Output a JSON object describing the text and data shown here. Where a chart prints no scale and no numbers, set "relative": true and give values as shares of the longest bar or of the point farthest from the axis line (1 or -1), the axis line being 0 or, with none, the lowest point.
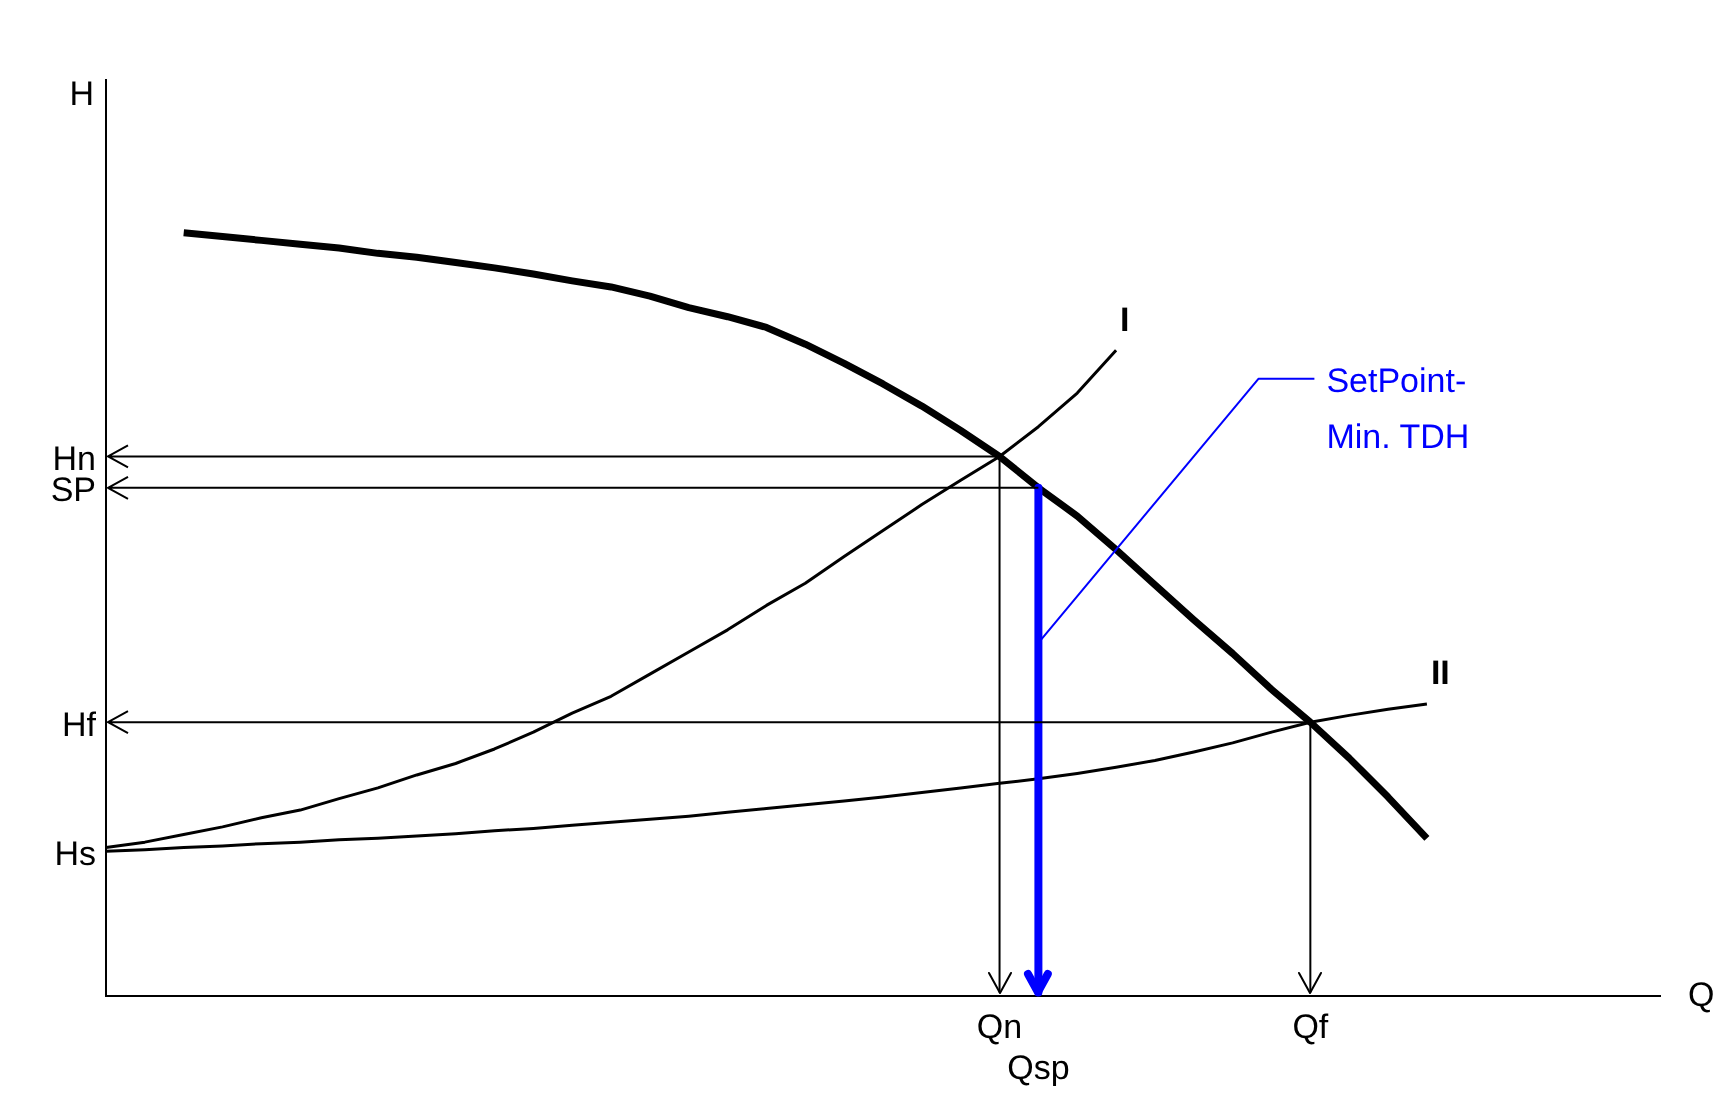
{
  "chart_data": {
    "type": "line",
    "relative": true,
    "xlabel": "Q",
    "ylabel": "H",
    "tick_labels": "x",
    "grid": false,
    "legend": false,
    "marker": "none",
    "categories": [
      null,
      null,
      null,
      null,
      null,
      null,
      null,
      null,
      null,
      null,
      null,
      null,
      null,
      null,
      null,
      null,
      null,
      null,
      null,
      null,
      null,
      null,
      null,
      "Qn",
      "Qsp",
      null,
      null,
      null,
      null,
      null,
      null,
      "Qf",
      null,
      null,
      null,
      null,
      null,
      null,
      null,
      null,
      null
    ],
    "series": [
      {
        "color": "#000000",
        "values": [
          null,
          null,
          1.0,
          0.995,
          0.99,
          0.985,
          0.98,
          0.973,
          0.968,
          0.961,
          0.954,
          0.946,
          0.937,
          0.929,
          0.917,
          0.902,
          0.89,
          0.876,
          0.854,
          0.829,
          0.802,
          0.773,
          0.741,
          0.707,
          0.666,
          0.629,
          0.585,
          0.539,
          0.493,
          0.449,
          0.402,
          0.359,
          0.312,
          0.261,
          0.207,
          null,
          null,
          null,
          null,
          null,
          null
        ]
      },
      {
        "name": "I",
        "color": "#000000",
        "values": [
          0.195,
          0.202,
          0.212,
          0.222,
          0.234,
          0.244,
          0.259,
          0.273,
          0.29,
          0.305,
          0.324,
          0.346,
          0.371,
          0.393,
          0.422,
          0.451,
          0.48,
          0.512,
          0.541,
          0.576,
          0.61,
          0.644,
          0.676,
          0.707,
          0.746,
          0.79,
          0.846,
          null,
          null,
          null,
          null,
          null,
          null,
          null,
          null,
          null,
          null,
          null,
          null,
          null,
          null
        ]
      },
      {
        "name": "II",
        "color": "#000000",
        "values": [
          0.19,
          0.192,
          0.195,
          0.197,
          0.2,
          0.202,
          0.205,
          0.207,
          0.21,
          0.213,
          0.217,
          0.22,
          0.224,
          0.228,
          0.232,
          0.236,
          0.241,
          0.246,
          0.251,
          0.256,
          0.261,
          0.267,
          0.273,
          0.279,
          0.285,
          0.292,
          0.3,
          0.309,
          0.32,
          0.332,
          0.346,
          0.359,
          0.368,
          0.376,
          0.383,
          null,
          null,
          null,
          null,
          null,
          null
        ]
      }
    ],
    "ref_lines": [
      {
        "axis": "x",
        "value": "Qn",
        "color": "#000000"
      },
      {
        "axis": "x",
        "value": "Qsp",
        "color": "#0000ff"
      },
      {
        "axis": "x",
        "value": "Qf",
        "color": "#000000"
      },
      {
        "axis": "y",
        "value": 0.707,
        "label": "Hn",
        "color": "#000000"
      },
      {
        "axis": "y",
        "value": 0.666,
        "label": "SP",
        "color": "#000000"
      },
      {
        "axis": "y",
        "value": 0.359,
        "label": "Hf",
        "color": "#000000"
      }
    ],
    "annotations": [
      "Hs",
      {
        "text": "SetPoint-Min. TDH",
        "x": "Qsp",
        "y": 0.463
      }
    ]
  }
}
